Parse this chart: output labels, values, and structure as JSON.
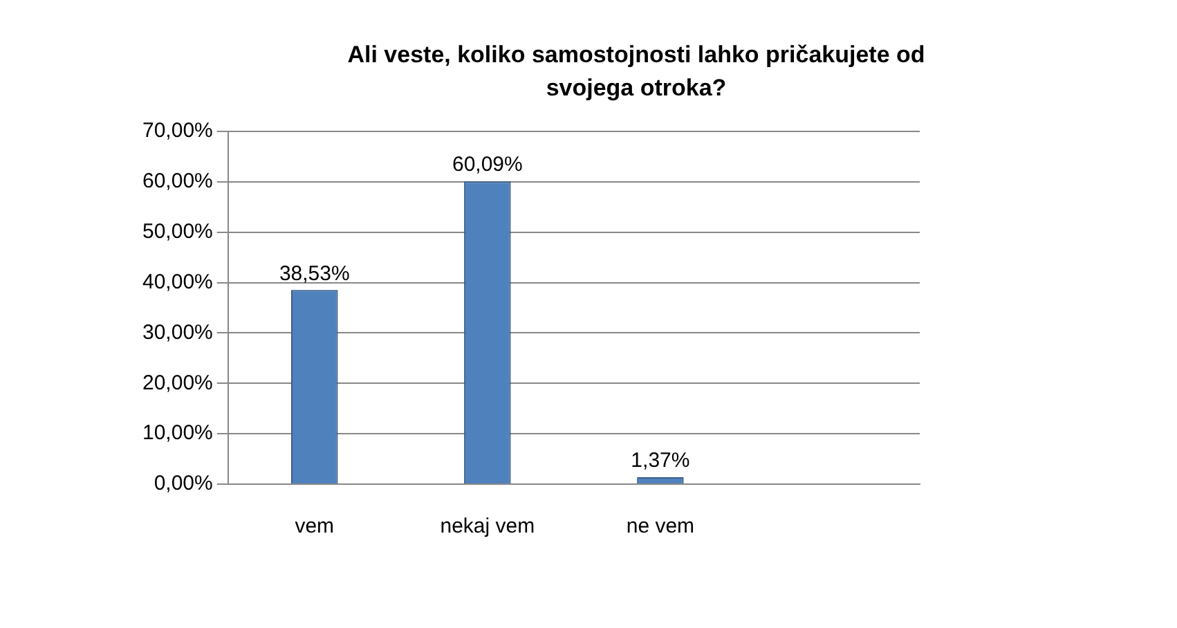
{
  "chart_data": {
    "type": "bar",
    "title": "Ali veste, koliko samostojnosti lahko pričakujete od svojega otroka?",
    "categories": [
      "vem",
      "nekaj vem",
      "ne vem",
      null
    ],
    "values": [
      38.53,
      60.09,
      1.37,
      null
    ],
    "value_labels": [
      "38,53%",
      "60,09%",
      "1,37%",
      null
    ],
    "color": "#4f81bd",
    "ylim": [
      0,
      70
    ],
    "yticks": [
      {
        "value": 0,
        "label": "0,00%"
      },
      {
        "value": 10,
        "label": "10,00%"
      },
      {
        "value": 20,
        "label": "20,00%"
      },
      {
        "value": 30,
        "label": "30,00%"
      },
      {
        "value": 40,
        "label": "40,00%"
      },
      {
        "value": 50,
        "label": "50,00%"
      },
      {
        "value": 60,
        "label": "60,00%"
      },
      {
        "value": 70,
        "label": "70,00%"
      }
    ],
    "grid": "y",
    "legend": false
  }
}
